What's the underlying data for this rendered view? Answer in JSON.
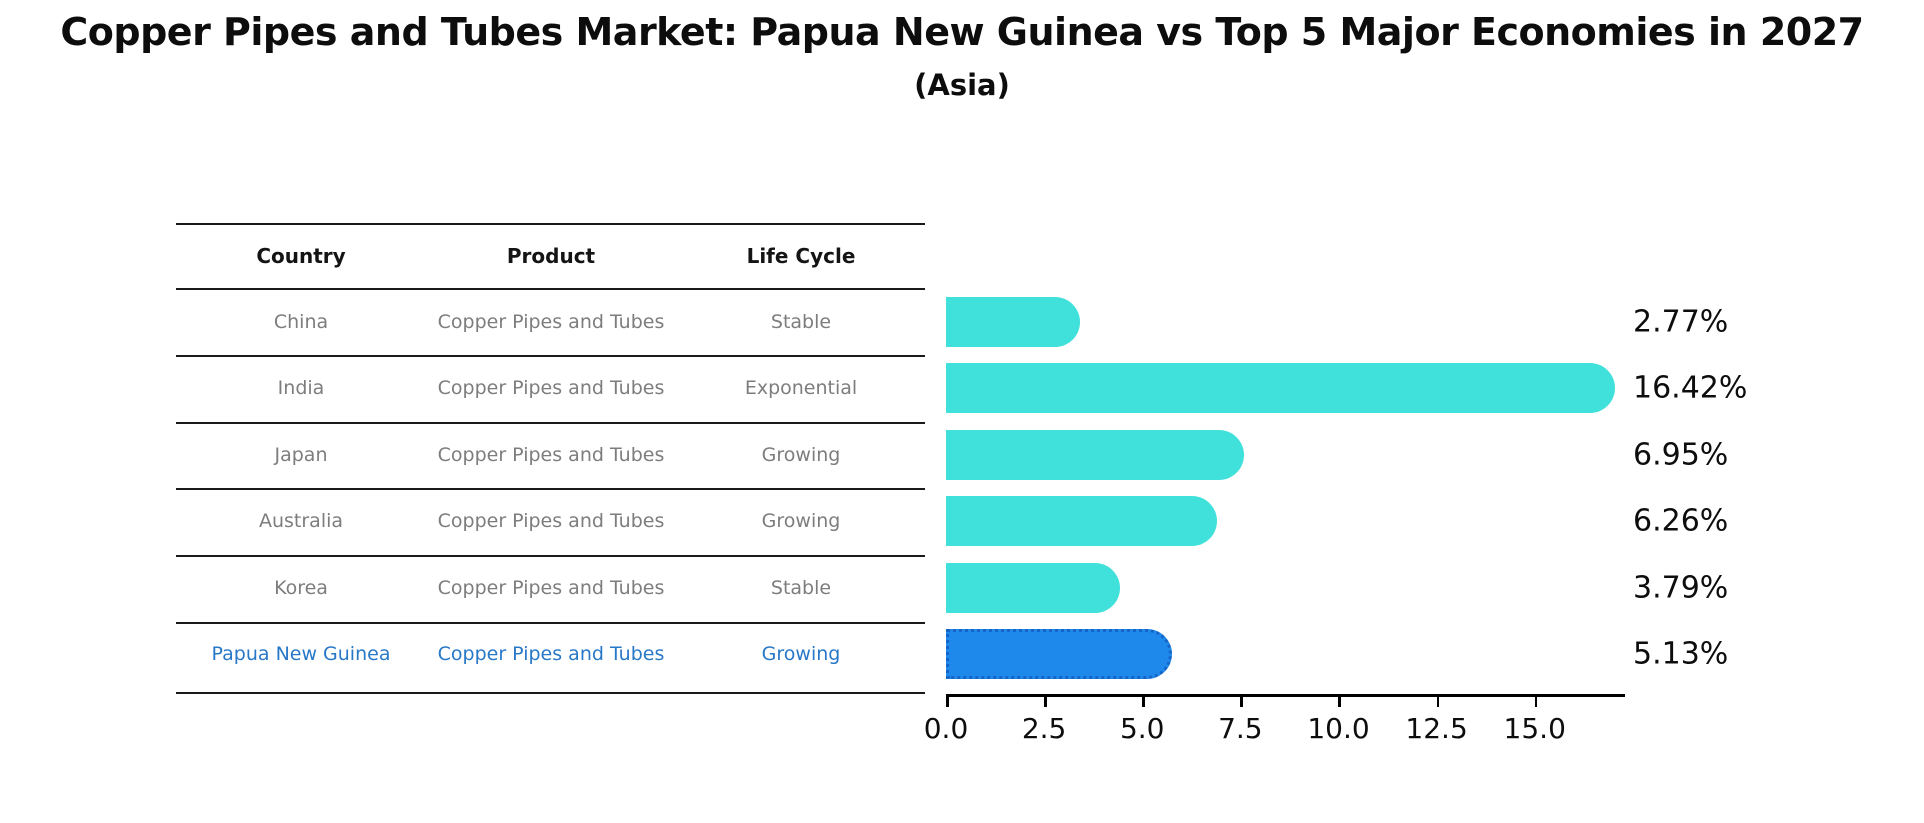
{
  "title": "Copper Pipes and Tubes Market: Papua New Guinea vs Top 5 Major Economies in 2027",
  "subtitle": "(Asia)",
  "table": {
    "headers": [
      "Country",
      "Product",
      "Life Cycle"
    ],
    "rows": [
      {
        "country": "China",
        "product": "Copper Pipes and Tubes",
        "life_cycle": "Stable",
        "highlight": false
      },
      {
        "country": "India",
        "product": "Copper Pipes and Tubes",
        "life_cycle": "Exponential",
        "highlight": false
      },
      {
        "country": "Japan",
        "product": "Copper Pipes and Tubes",
        "life_cycle": "Growing",
        "highlight": false
      },
      {
        "country": "Australia",
        "product": "Copper Pipes and Tubes",
        "life_cycle": "Growing",
        "highlight": false
      },
      {
        "country": "Korea",
        "product": "Copper Pipes and Tubes",
        "life_cycle": "Stable",
        "highlight": false
      },
      {
        "country": "Papua New Guinea",
        "product": "Copper Pipes and Tubes",
        "life_cycle": "Growing",
        "highlight": true
      }
    ]
  },
  "chart_data": {
    "type": "bar",
    "orientation": "horizontal",
    "title": "Copper Pipes and Tubes Market: Papua New Guinea vs Top 5 Major Economies in 2027",
    "subtitle": "(Asia)",
    "categories": [
      "China",
      "India",
      "Japan",
      "Australia",
      "Korea",
      "Papua New Guinea"
    ],
    "values": [
      2.77,
      16.42,
      6.95,
      6.26,
      3.79,
      5.13
    ],
    "value_labels": [
      "2.77%",
      "16.42%",
      "6.95%",
      "6.26%",
      "3.79%",
      "5.13%"
    ],
    "xlim": [
      0,
      17.3
    ],
    "xticks": [
      0.0,
      2.5,
      5.0,
      7.5,
      10.0,
      12.5,
      15.0
    ],
    "xtick_labels": [
      "0.0",
      "2.5",
      "5.0",
      "7.5",
      "10.0",
      "12.5",
      "15.0"
    ],
    "grid": false,
    "legend": false,
    "highlight_index": 5
  },
  "colors": {
    "bar": "#40e0db",
    "highlight_bar": "#1e88eb",
    "highlight_bar_edge": "#1565c8",
    "highlight_text": "#2878c8",
    "cell_text": "#7d7d7d",
    "axis": "#000000"
  }
}
